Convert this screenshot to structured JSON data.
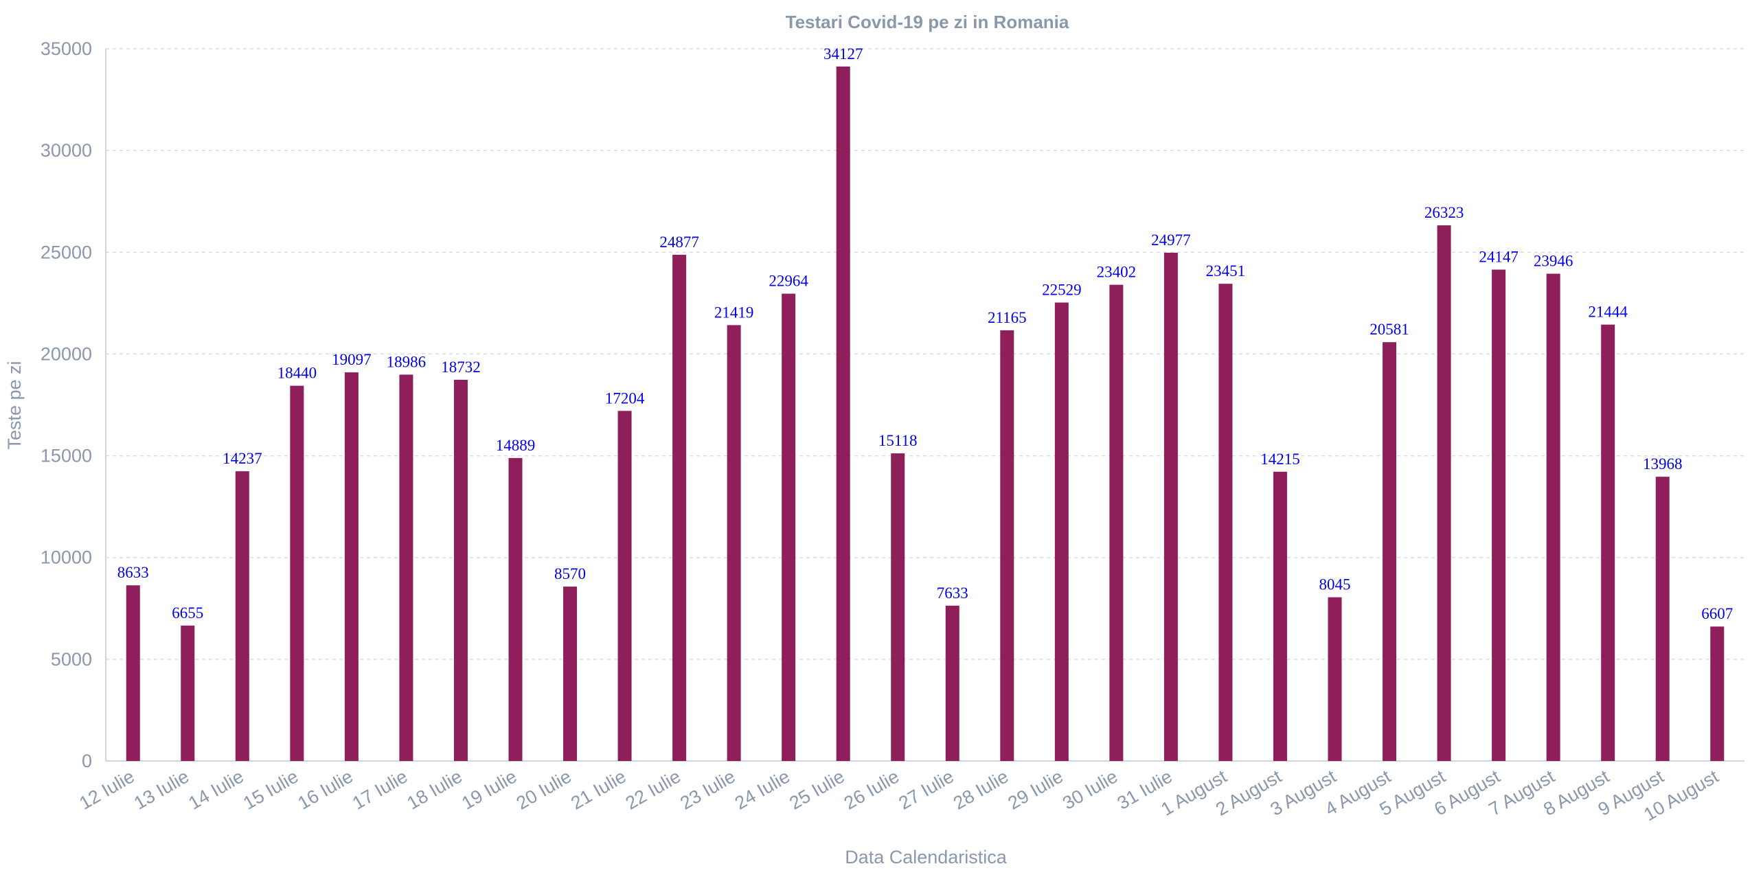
{
  "chart_data": {
    "type": "bar",
    "title": "Testari Covid-19 pe zi in Romania",
    "xlabel": "Data Calendaristica",
    "ylabel": "Teste pe zi",
    "ylim": [
      0,
      35000
    ],
    "yticks": [
      0,
      5000,
      10000,
      15000,
      20000,
      25000,
      30000,
      35000
    ],
    "grid": true,
    "bar_color": "#8e1f5a",
    "label_color": "#0000ee",
    "categories": [
      "12 Iulie",
      "13 Iulie",
      "14 Iulie",
      "15 Iulie",
      "16 Iulie",
      "17 Iulie",
      "18 Iulie",
      "19 Iulie",
      "20 Iulie",
      "21 Iulie",
      "22 Iulie",
      "23 Iulie",
      "24 Iulie",
      "25 Iulie",
      "26 Iulie",
      "27 Iulie",
      "28 Iulie",
      "29 Iulie",
      "30 Iulie",
      "31 Iulie",
      "1 August",
      "2 August",
      "3 August",
      "4 August",
      "5 August",
      "6 August",
      "7 August",
      "8 August",
      "9 August",
      "10 August"
    ],
    "values": [
      8633,
      6655,
      14237,
      18440,
      19097,
      18986,
      18732,
      14889,
      8570,
      17204,
      24877,
      21419,
      22964,
      34127,
      15118,
      7633,
      21165,
      22529,
      23402,
      24977,
      23451,
      14215,
      8045,
      20581,
      26323,
      24147,
      23946,
      21444,
      13968,
      6607
    ]
  }
}
